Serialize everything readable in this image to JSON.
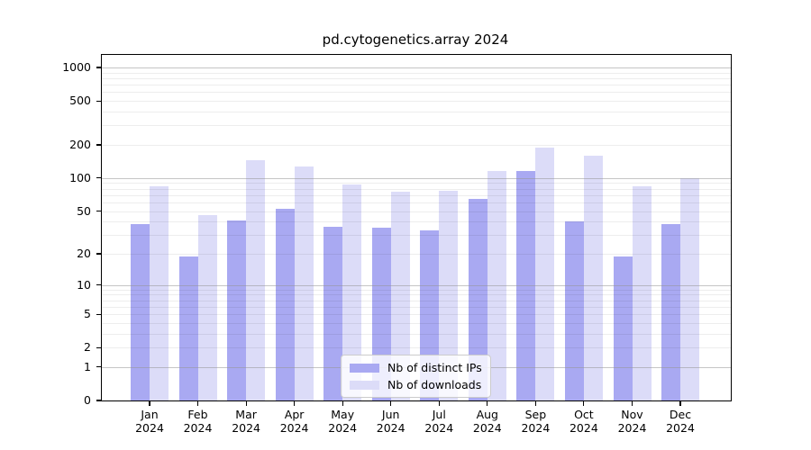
{
  "title": "pd.cytogenetics.array 2024",
  "chart_data": {
    "type": "bar",
    "title": "pd.cytogenetics.array 2024",
    "yscale": "log1p",
    "ylim": [
      0,
      1300
    ],
    "yticks": [
      0,
      1,
      2,
      5,
      10,
      20,
      50,
      100,
      200,
      500,
      1000
    ],
    "major_gridlines": [
      1,
      10,
      100,
      1000
    ],
    "grid": true,
    "legend_position": "lower center",
    "categories": [
      "Jan 2024",
      "Feb 2024",
      "Mar 2024",
      "Apr 2024",
      "May 2024",
      "Jun 2024",
      "Jul 2024",
      "Aug 2024",
      "Sep 2024",
      "Oct 2024",
      "Nov 2024",
      "Dec 2024"
    ],
    "series": [
      {
        "name": "Nb of distinct IPs",
        "key": "distinct-ips",
        "color": "#a9a9f2",
        "values": [
          38,
          19,
          41,
          52,
          36,
          35,
          33,
          65,
          116,
          40,
          19,
          38
        ]
      },
      {
        "name": "Nb of downloads",
        "key": "downloads",
        "color": "#dcdcf8",
        "values": [
          85,
          46,
          146,
          128,
          88,
          75,
          77,
          115,
          190,
          161,
          84,
          100
        ]
      }
    ]
  },
  "colors": {
    "background": "#ffffff",
    "axis": "#000000",
    "grid_major": "#969696",
    "grid_minor": "#ebebeb",
    "text": "#000000"
  }
}
